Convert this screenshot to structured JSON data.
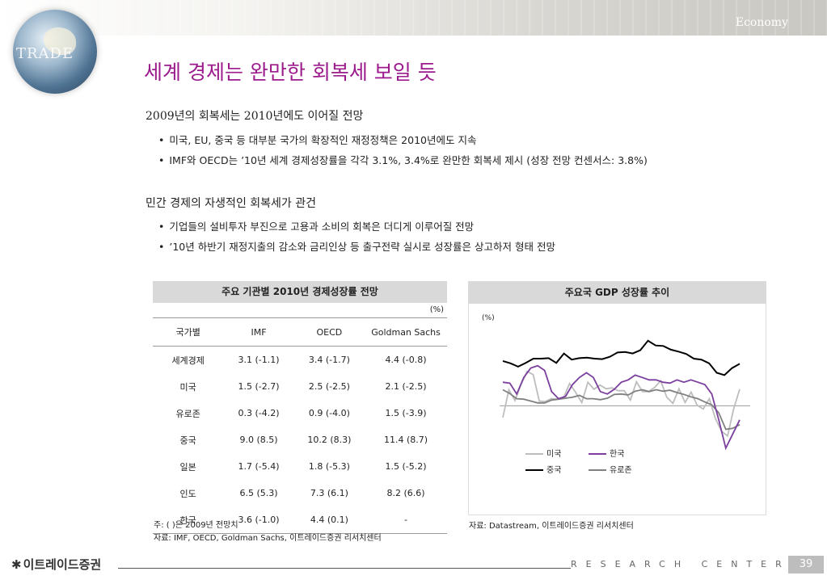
{
  "header": {
    "section": "Economy",
    "logo_text": "TRADE"
  },
  "title": "세계 경제는 완만한 회복세 보일 듯",
  "sections": [
    {
      "heading": "2009년의 회복세는 2010년에도 이어질 전망",
      "bullets": [
        "미국, EU, 중국 등 대부분 국가의 확장적인 재정정책은 2010년에도 지속",
        "IMF와 OECD는 ’10년 세계 경제성장률을 각각 3.1%, 3.4%로 완만한 회복세 제시 (성장 전망 컨센서스: 3.8%)"
      ]
    },
    {
      "heading": "민간 경제의 자생적인 회복세가 관건",
      "bullets": [
        "기업들의 설비투자 부진으로 고용과 소비의 회복은 더디게 이루어질 전망",
        "’10년 하반기 재정지출의 감소와 금리인상 등 출구전략 실시로 성장률은 상고하저 형태 전망"
      ]
    }
  ],
  "forecast_table": {
    "title": "주요 기관별 2010년 경제성장률 전망",
    "unit": "(%)",
    "headers": [
      "국가별",
      "IMF",
      "OECD",
      "Goldman Sachs"
    ],
    "rows": [
      [
        "세계경제",
        "3.1 (-1.1)",
        "3.4 (-1.7)",
        "4.4 (-0.8)"
      ],
      [
        "미국",
        "1.5 (-2.7)",
        "2.5 (-2.5)",
        "2.1 (-2.5)"
      ],
      [
        "유로존",
        "0.3 (-4.2)",
        "0.9 (-4.0)",
        "1.5 (-3.9)"
      ],
      [
        "중국",
        "9.0 (8.5)",
        "10.2 (8.3)",
        "11.4 (8.7)"
      ],
      [
        "일본",
        "1.7 (-5.4)",
        "1.8 (-5.3)",
        "1.5 (-5.2)"
      ],
      [
        "인도",
        "6.5 (5.3)",
        "7.3 (6.1)",
        "8.2 (6.6)"
      ],
      [
        "한국",
        "3.6 (-1.0)",
        "4.4 (0.1)",
        "-"
      ]
    ],
    "note": "주: ( )은 2009년 전망치",
    "source": "자료: IMF, OECD, Goldman Sachs, 이트레이드증권 리서치센터"
  },
  "chart_data": {
    "type": "line",
    "title": "주요국 GDP 성장률 추이",
    "ylabel": "(%)",
    "grid": false,
    "legend_position": "bottom-center",
    "ylim": [
      -14,
      16
    ],
    "series": [
      {
        "name": "미국",
        "color": "#bdbdbd",
        "values": [
          -2.5,
          3.4,
          1.1,
          4.5,
          7.3,
          6.6,
          1.0,
          0.9,
          1.5,
          1.4,
          1.7,
          4.7,
          2.8,
          0.7,
          5.0,
          3.5,
          4.4,
          3.6,
          3.8,
          3.2,
          3.2,
          1.2,
          5.1,
          3.0,
          3.0,
          3.9,
          5.3,
          1.8,
          0.5,
          3.6,
          0.7,
          2.9,
          0.1,
          -0.7,
          1.5,
          -2.7,
          -5.4,
          -6.4,
          -0.7,
          3.5
        ]
      },
      {
        "name": "한국",
        "color": "#7b3f9e",
        "values": [
          5.0,
          4.8,
          2.5,
          6.0,
          8.0,
          8.5,
          7.5,
          3.0,
          1.5,
          2.0,
          4.5,
          6.0,
          7.0,
          6.0,
          3.0,
          2.5,
          3.5,
          5.0,
          5.5,
          6.5,
          6.0,
          5.5,
          5.5,
          5.0,
          4.8,
          5.5,
          5.0,
          5.5,
          5.0,
          4.5,
          2.5,
          -3.0,
          -9.0,
          -6.0,
          -3.0
        ]
      },
      {
        "name": "중국",
        "color": "#000000",
        "values": [
          9.5,
          9.0,
          8.3,
          9.1,
          10.0,
          10.0,
          10.1,
          9.1,
          11.1,
          9.8,
          10.1,
          10.2,
          10.0,
          9.9,
          10.4,
          11.3,
          11.4,
          11.1,
          11.8,
          13.8,
          12.8,
          12.7,
          11.9,
          11.5,
          11.0,
          10.0,
          9.8,
          9.0,
          7.0,
          6.5,
          8.0,
          8.9
        ]
      },
      {
        "name": "유로존",
        "color": "#808080",
        "values": [
          3.4,
          2.6,
          1.5,
          1.4,
          1.0,
          0.6,
          0.6,
          1.2,
          1.4,
          1.6,
          1.8,
          2.2,
          1.5,
          1.5,
          1.3,
          1.6,
          2.4,
          2.5,
          2.3,
          3.1,
          3.4,
          3.0,
          3.4,
          3.1,
          3.3,
          2.8,
          2.4,
          1.9,
          1.5,
          0.8,
          0.2,
          -1.5,
          -5.0,
          -4.8,
          -4.0
        ]
      }
    ],
    "source": "자료: Datastream, 이트레이드증권 리서치센터"
  },
  "footer": {
    "logo": "이트레이드증권",
    "research_center": "RESEARCH CENTER",
    "page": "39"
  }
}
